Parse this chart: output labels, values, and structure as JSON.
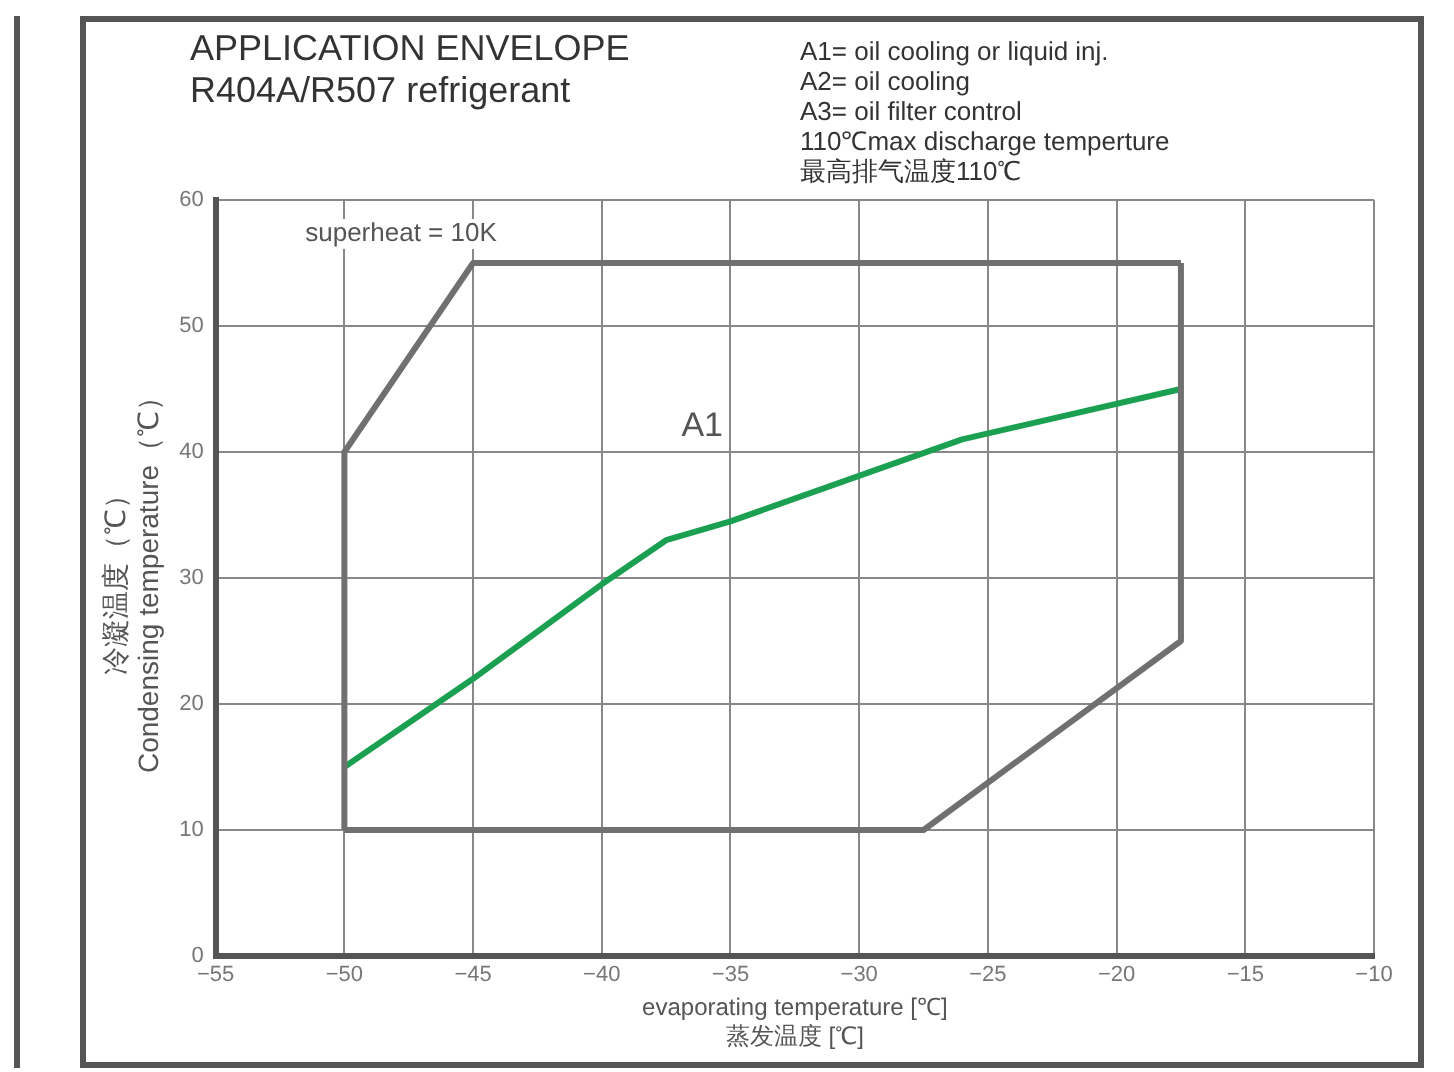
{
  "chart_data": {
    "type": "line",
    "title": "APPLICATION ENVELOPE",
    "subtitle": "R404A/R507  refrigerant",
    "xlabel": "evaporating temperature [℃]\n蒸发温度 [℃]",
    "ylabel": "冷凝温度（℃）\nCondensing temperature（℃）",
    "annotations": [
      "A1=  oil cooling or liquid inj.",
      "A2=  oil cooling",
      "A3=  oil filter control",
      "110℃max discharge temperture",
      "最高排气温度110℃",
      "superheat = 10K",
      "A1"
    ],
    "series": [
      {
        "color": "#707070",
        "x": [
          -50,
          -50,
          -45,
          -17.5
        ],
        "values": [
          10,
          40,
          55,
          55
        ]
      },
      {
        "color": "#707070",
        "x": [
          -50,
          -27.5,
          -17.5,
          -17.5
        ],
        "values": [
          10,
          10,
          25,
          55
        ]
      },
      {
        "color": "#1aa050",
        "x": [
          -50,
          -45,
          -40,
          -37.5,
          -35,
          -26,
          -17.5
        ],
        "values": [
          15,
          22,
          29.5,
          33,
          34.5,
          41,
          45
        ]
      }
    ],
    "xlim": [
      -55,
      -10
    ],
    "xticks": [
      -55,
      -50,
      -45,
      -40,
      -35,
      -30,
      -25,
      -20,
      -15,
      -10
    ],
    "ylim": [
      0,
      60
    ],
    "yticks": [
      0,
      10,
      20,
      30,
      40,
      50,
      60
    ],
    "grid": true,
    "legend": false,
    "marker": "none",
    "line_style": "solid"
  }
}
